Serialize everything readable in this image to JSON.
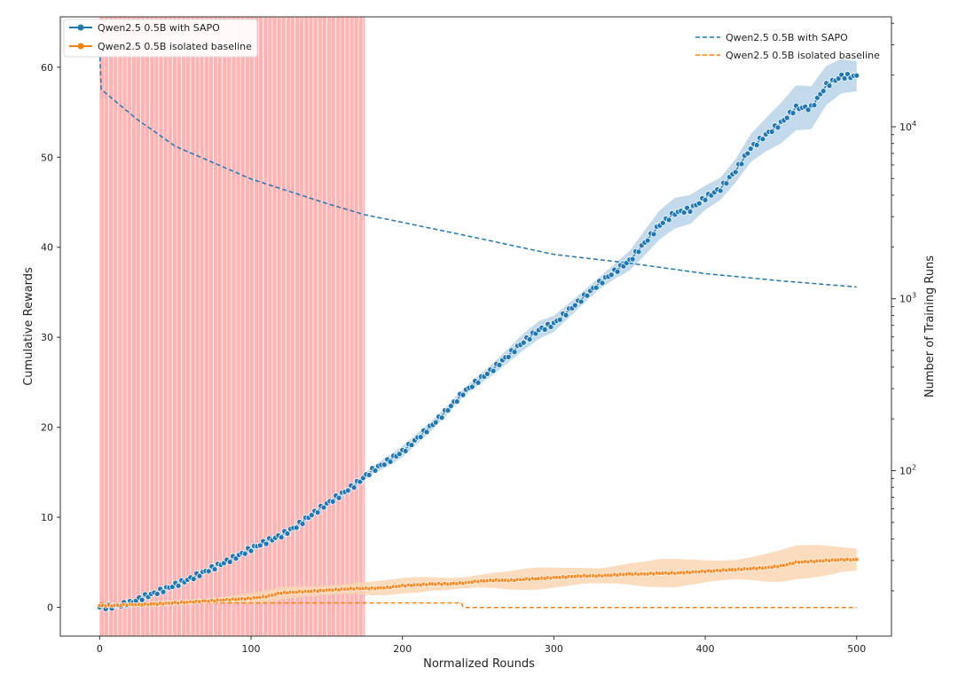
{
  "chart_data": {
    "type": "line",
    "xlabel": "Normalized Rounds",
    "ylabel": "Cumulative Rewards",
    "y2label": "Number of Training Runs",
    "xlim": [
      -26,
      523
    ],
    "ylim": [
      -3.2,
      65.6
    ],
    "y2lim": [
      10.9,
      43600
    ],
    "y2scale": "log",
    "xticks": [
      0,
      100,
      200,
      300,
      400,
      500
    ],
    "yticks": [
      0,
      10,
      20,
      30,
      40,
      50,
      60
    ],
    "y2ticks": [
      {
        "value": 100,
        "label": "10",
        "exp": "2"
      },
      {
        "value": 1000,
        "label": "10",
        "exp": "3"
      },
      {
        "value": 10000,
        "label": "10",
        "exp": "4"
      }
    ],
    "grid": false,
    "shaded_region": {
      "x": [
        0,
        175
      ],
      "color": "#ffb3b3"
    },
    "legend_left": {
      "placement": "top-left",
      "entries": [
        "Qwen2.5 0.5B with SAPO",
        "Qwen2.5 0.5B isolated baseline"
      ]
    },
    "legend_right": {
      "placement": "top-right",
      "entries": [
        "Qwen2.5 0.5B with SAPO",
        "Qwen2.5 0.5B isolated baseline"
      ]
    },
    "colors": {
      "sapo": "#1f77b4",
      "baseline": "#ff7f0e",
      "sapo_band": "#b9d3ea",
      "baseline_band": "#fcd6b3"
    },
    "x": [
      0,
      10,
      20,
      30,
      40,
      50,
      60,
      70,
      80,
      90,
      100,
      110,
      120,
      130,
      140,
      150,
      160,
      170,
      180,
      190,
      200,
      210,
      220,
      230,
      240,
      250,
      260,
      270,
      280,
      290,
      300,
      310,
      320,
      330,
      340,
      350,
      360,
      370,
      380,
      390,
      400,
      410,
      420,
      430,
      440,
      450,
      460,
      470,
      480,
      490,
      500
    ],
    "series": [
      {
        "name": "Qwen2.5 0.5B with SAPO",
        "axis": "left",
        "style": "line-markers",
        "values": [
          0,
          0.1,
          0.5,
          1.2,
          1.8,
          2.5,
          3.2,
          4,
          4.8,
          5.6,
          6.5,
          7.3,
          8,
          9,
          10.3,
          11.5,
          12.6,
          13.8,
          15.2,
          16.2,
          17.3,
          18.8,
          20.3,
          22,
          23.8,
          25.2,
          26.5,
          28,
          29.5,
          30.8,
          31.5,
          33,
          34.5,
          36,
          37.3,
          38.5,
          40.5,
          42.5,
          43.8,
          44.2,
          45.5,
          46.5,
          48.5,
          51,
          52.5,
          53.8,
          55.5,
          55.5,
          58,
          59,
          59
        ],
        "ci": [
          0.1,
          0.1,
          0.1,
          0.1,
          0.1,
          0.15,
          0.15,
          0.2,
          0.2,
          0.2,
          0.25,
          0.25,
          0.3,
          0.3,
          0.3,
          0.35,
          0.35,
          0.4,
          0.4,
          0.45,
          0.5,
          0.5,
          0.55,
          0.6,
          0.6,
          0.65,
          0.7,
          0.7,
          0.75,
          0.8,
          0.8,
          0.85,
          0.9,
          0.9,
          1.0,
          1.1,
          1.2,
          1.3,
          1.4,
          1.5,
          1.5,
          1.6,
          1.7,
          1.8,
          1.8,
          1.9,
          2.0,
          2.0,
          2.1,
          2.2,
          2.2
        ]
      },
      {
        "name": "Qwen2.5 0.5B isolated baseline",
        "axis": "left",
        "style": "line-markers",
        "values": [
          0.2,
          0.2,
          0.3,
          0.3,
          0.4,
          0.5,
          0.6,
          0.7,
          0.8,
          0.9,
          1.0,
          1.2,
          1.6,
          1.7,
          1.8,
          1.9,
          2.0,
          2.1,
          2.1,
          2.2,
          2.4,
          2.5,
          2.6,
          2.6,
          2.7,
          2.9,
          3.0,
          3.0,
          3.1,
          3.2,
          3.3,
          3.4,
          3.5,
          3.5,
          3.6,
          3.7,
          3.7,
          3.8,
          3.8,
          3.9,
          4.0,
          4.1,
          4.2,
          4.3,
          4.4,
          4.6,
          5.0,
          5.1,
          5.2,
          5.3,
          5.3
        ],
        "ci": [
          0.2,
          0.2,
          0.2,
          0.2,
          0.25,
          0.3,
          0.3,
          0.35,
          0.4,
          0.45,
          0.5,
          0.55,
          0.6,
          0.6,
          0.65,
          0.7,
          0.7,
          0.7,
          0.7,
          0.7,
          0.7,
          0.75,
          0.75,
          0.8,
          0.8,
          0.85,
          0.9,
          0.9,
          0.95,
          1.0,
          1.0,
          1.05,
          1.1,
          1.1,
          1.15,
          1.2,
          1.2,
          1.25,
          1.3,
          1.3,
          1.35,
          1.4,
          1.4,
          1.45,
          1.5,
          1.5,
          1.5,
          1.55,
          1.6,
          1.6,
          1.6
        ]
      },
      {
        "name": "Qwen2.5 0.5B with SAPO",
        "axis": "right",
        "style": "dashed",
        "x": [
          0,
          1,
          25,
          50,
          100,
          150,
          175,
          200,
          250,
          300,
          350,
          400,
          450,
          500
        ],
        "values": [
          28000,
          16500,
          11000,
          7700,
          4970,
          3580,
          3080,
          2780,
          2250,
          1810,
          1610,
          1400,
          1270,
          1170
        ]
      },
      {
        "name": "Qwen2.5 0.5B isolated baseline",
        "axis": "right",
        "style": "dashed",
        "x": [
          0,
          239,
          240,
          500
        ],
        "values": [
          17,
          17,
          16,
          16
        ]
      }
    ]
  }
}
